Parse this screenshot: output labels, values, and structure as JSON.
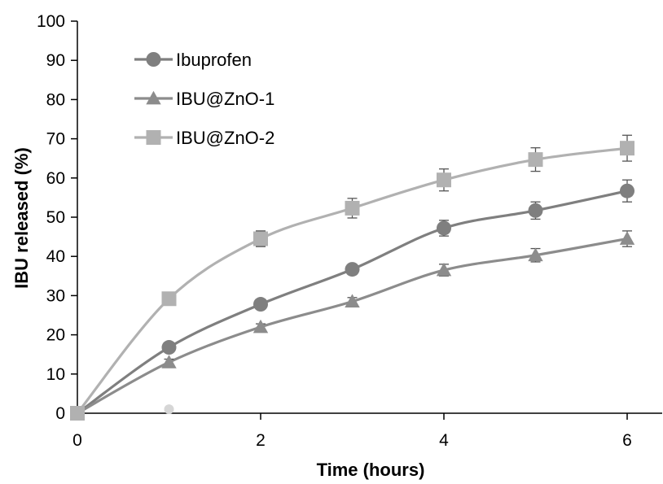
{
  "chart_data": {
    "type": "line",
    "xlabel": "Time (hours)",
    "ylabel": "IBU released (%)",
    "xlim": [
      0,
      6.4
    ],
    "ylim": [
      0,
      100
    ],
    "xticks": [
      0,
      2,
      4,
      6
    ],
    "yticks": [
      0,
      10,
      20,
      30,
      40,
      50,
      60,
      70,
      80,
      90,
      100
    ],
    "grid": false,
    "legend_position": "top-left",
    "x": [
      0,
      1,
      2,
      3,
      4,
      5,
      6
    ],
    "series": [
      {
        "name": "Ibuprofen",
        "marker": "circle",
        "color": "#7f7f7f",
        "values": [
          0,
          16.8,
          27.8,
          36.7,
          47.2,
          51.7,
          56.7
        ],
        "errors": [
          0,
          0.8,
          1.0,
          1.2,
          2.0,
          2.2,
          2.8
        ]
      },
      {
        "name": "IBU@ZnO-1",
        "marker": "triangle",
        "color": "#8c8c8c",
        "values": [
          0,
          13,
          22,
          28.5,
          36.5,
          40.3,
          44.5
        ],
        "errors": [
          0,
          0.8,
          0.8,
          1.0,
          1.5,
          1.7,
          2.0
        ]
      },
      {
        "name": "IBU@ZnO-2",
        "marker": "square",
        "color": "#b1b1b1",
        "values": [
          0,
          29.2,
          44.5,
          52.3,
          59.5,
          64.7,
          67.6
        ],
        "errors": [
          0,
          0.6,
          2.0,
          2.5,
          2.8,
          3.0,
          3.3
        ]
      }
    ],
    "extra_points": [
      {
        "x": 1,
        "y": 1,
        "color": "#d6d6d6"
      }
    ]
  }
}
